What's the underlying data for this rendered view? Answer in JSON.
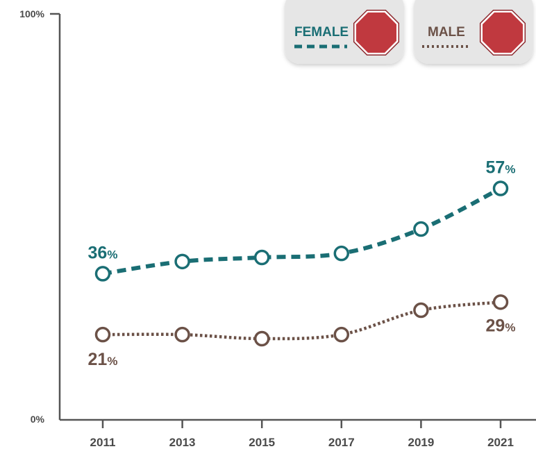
{
  "chart_data": {
    "type": "line",
    "x": [
      "2011",
      "2013",
      "2015",
      "2017",
      "2019",
      "2021"
    ],
    "ylim": [
      0,
      100
    ],
    "y_tick_labels": [
      "100%",
      "0%"
    ],
    "grid": false,
    "legend_position": "top-right",
    "series": [
      {
        "name": "FEMALE",
        "values": [
          36,
          39,
          40,
          41,
          47,
          57
        ],
        "color": "#1a6e74",
        "style": "dashed",
        "labels": [
          {
            "index": 0,
            "num": "36",
            "unit": "%"
          },
          {
            "index": 5,
            "num": "57",
            "unit": "%"
          }
        ]
      },
      {
        "name": "MALE",
        "values": [
          21,
          21,
          20,
          21,
          27,
          29
        ],
        "color": "#6b5147",
        "style": "dotted",
        "labels": [
          {
            "index": 0,
            "num": "21",
            "unit": "%"
          },
          {
            "index": 5,
            "num": "29",
            "unit": "%"
          }
        ]
      }
    ],
    "legend_icon": "stop-sign-icon",
    "legend_icon_color": "#c0393f"
  }
}
